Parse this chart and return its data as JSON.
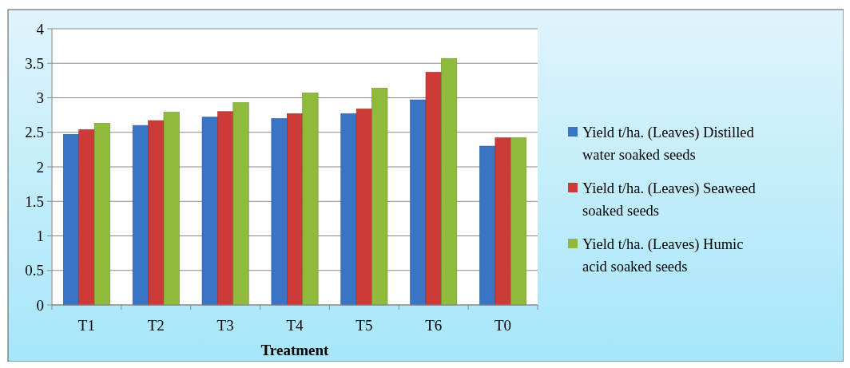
{
  "chart_data": {
    "type": "bar",
    "xlabel": "Treatment",
    "categories": [
      "T1",
      "T2",
      "T3",
      "T4",
      "T5",
      "T6",
      "T0"
    ],
    "series": [
      {
        "name": "Yield t/ha. (Leaves) Distilled water soaked seeds",
        "color": "#3a74c4",
        "values": [
          2.47,
          2.6,
          2.72,
          2.7,
          2.77,
          2.97,
          2.3
        ]
      },
      {
        "name": "Yield t/ha. (Leaves) Seaweed soaked seeds",
        "color": "#cc3b37",
        "values": [
          2.54,
          2.67,
          2.8,
          2.77,
          2.84,
          3.37,
          2.42
        ]
      },
      {
        "name": "Yield t/ha. (Leaves) Humic acid soaked seeds",
        "color": "#8fba3c",
        "values": [
          2.63,
          2.79,
          2.93,
          3.07,
          3.14,
          3.57,
          2.42
        ]
      }
    ],
    "ylim": [
      0,
      4
    ],
    "yticks": [
      0,
      0.5,
      1,
      1.5,
      2,
      2.5,
      3,
      3.5,
      4
    ],
    "grid": "y",
    "legend": "right"
  }
}
